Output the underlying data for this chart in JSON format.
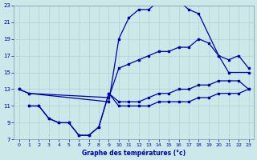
{
  "title": "Graphe des températures (°c)",
  "bg_color": "#cce8e8",
  "line_color": "#0000aa",
  "xlim": [
    -0.5,
    23.5
  ],
  "ylim": [
    7,
    23
  ],
  "xticks": [
    0,
    1,
    2,
    3,
    4,
    5,
    6,
    7,
    8,
    9,
    10,
    11,
    12,
    13,
    14,
    15,
    16,
    17,
    18,
    19,
    20,
    21,
    22,
    23
  ],
  "yticks": [
    7,
    9,
    11,
    13,
    15,
    17,
    19,
    21,
    23
  ],
  "curve_high_x": [
    0,
    1,
    9,
    10,
    11,
    12,
    13,
    14,
    15,
    16,
    17,
    18,
    20,
    21,
    23
  ],
  "curve_high_y": [
    13,
    12.5,
    11.5,
    19,
    21.5,
    22.5,
    22.5,
    23.5,
    23.5,
    23.5,
    22.5,
    22,
    17,
    15,
    15
  ],
  "curve_diag_x": [
    0,
    1,
    9,
    10,
    11,
    12,
    13,
    14,
    15,
    16,
    17,
    18,
    19,
    20,
    21,
    22,
    23
  ],
  "curve_diag_y": [
    13,
    12.5,
    12,
    15.5,
    16,
    16.5,
    17,
    17.5,
    17.5,
    18,
    18,
    19,
    18.5,
    17,
    16.5,
    17,
    15.5
  ],
  "curve_low_x": [
    1,
    2,
    3,
    4,
    5,
    6,
    7,
    8,
    9,
    10,
    11,
    12,
    13,
    14,
    15,
    16,
    17,
    18,
    19,
    20,
    21,
    22,
    23
  ],
  "curve_low_y": [
    11,
    11,
    9.5,
    9,
    9,
    7.5,
    7.5,
    8.5,
    12.5,
    11,
    11,
    11,
    11,
    11.5,
    11.5,
    11.5,
    11.5,
    12,
    12,
    12.5,
    12.5,
    12.5,
    13
  ],
  "curve_flat_x": [
    1,
    2,
    3,
    4,
    5,
    6,
    7,
    8,
    9,
    10,
    11,
    12,
    13,
    14,
    15,
    16,
    17,
    18,
    19,
    20,
    21,
    22,
    23
  ],
  "curve_flat_y": [
    11,
    11,
    9.5,
    9,
    9,
    7.5,
    7.5,
    8.5,
    12.5,
    11.5,
    11.5,
    11.5,
    12,
    12.5,
    12.5,
    13,
    13,
    13.5,
    13.5,
    14,
    14,
    14,
    13
  ]
}
